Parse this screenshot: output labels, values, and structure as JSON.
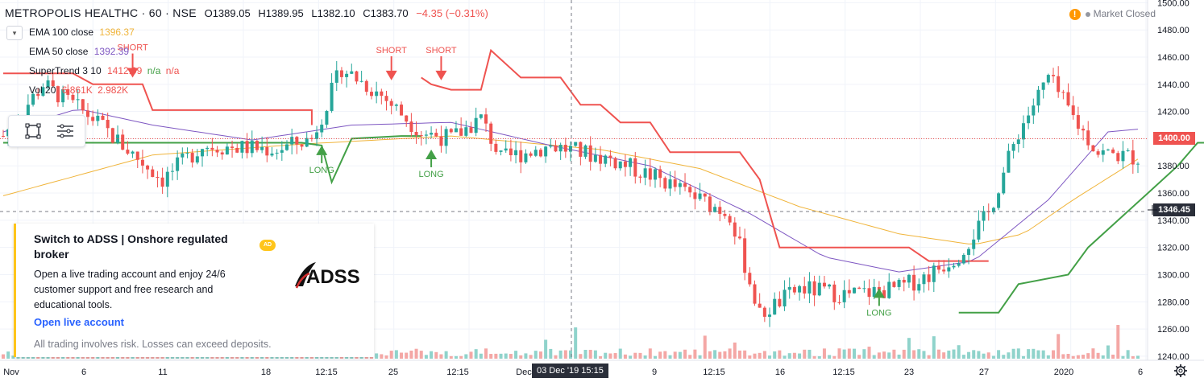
{
  "header": {
    "title": "METROPOLIS HEALTHC · 60 · NSE",
    "o_label": "O",
    "o": "1389.05",
    "h_label": "H",
    "h": "1389.95",
    "l_label": "L",
    "l": "1382.10",
    "c_label": "C",
    "c": "1383.70",
    "change": "−4.35 (−0.31%)"
  },
  "legend": {
    "ema100_label": "EMA 100 close",
    "ema100_value": "1396.37",
    "ema50_label": "EMA 50 close",
    "ema50_value": "1392.39",
    "supertrend_label": "SuperTrend 3 10",
    "supertrend_value": "1412.99",
    "supertrend_na1": "n/a",
    "supertrend_na2": "n/a",
    "vol_label": "Vol 20",
    "vol_value1": "6.861K",
    "vol_value2": "2.982K"
  },
  "market_status": {
    "warning_icon": "!",
    "label": "Market Closed"
  },
  "price_labels": {
    "last": "1400.00",
    "crosshair": "1346.45"
  },
  "crosshair_date": "03 Dec '19   15:15",
  "signals": {
    "short": "SHORT",
    "long": "LONG"
  },
  "ad": {
    "title": "Switch to ADSS | Onshore regulated broker",
    "badge": "AD",
    "body": "Open a live trading account and enjoy 24/6 customer support and free research and educational tools.",
    "link": "Open live account",
    "footer": "All trading involves risk. Losses can exceed deposits.",
    "logo_text": "ADSS"
  },
  "colors": {
    "up": "#26a69a",
    "down": "#ef5350",
    "ema100": "#f0b43a",
    "ema50": "#7e57c2",
    "st_up": "#43a047",
    "st_down": "#ef5350",
    "vol_up": "#8fd3cb",
    "vol_down": "#f4a7a5",
    "last_price": "#ef5350",
    "crosshair_label": "#2a2e39"
  },
  "chart_data": {
    "type": "candlestick",
    "symbol": "METROPOLIS HEALTHC",
    "interval": "60",
    "exchange": "NSE",
    "y_axis": {
      "ticks": [
        1500,
        1480,
        1460,
        1440,
        1420,
        1400,
        1380,
        1360,
        1340,
        1320,
        1300,
        1280,
        1260,
        1240
      ],
      "ylim": [
        1237,
        1502
      ],
      "side": "right"
    },
    "x_axis": {
      "ticks": [
        "Nov",
        "6",
        "11",
        "18",
        "12:15",
        "25",
        "12:15",
        "Dec",
        "9",
        "12:15",
        "16",
        "12:15",
        "23",
        "27",
        "2020",
        "6"
      ]
    },
    "candle_count": 210,
    "price_path": [
      {
        "bar": 0,
        "close": 1402
      },
      {
        "bar": 8,
        "close": 1440
      },
      {
        "bar": 18,
        "close": 1415
      },
      {
        "bar": 24,
        "close": 1395
      },
      {
        "bar": 32,
        "close": 1370
      },
      {
        "bar": 40,
        "close": 1395
      },
      {
        "bar": 55,
        "close": 1392
      },
      {
        "bar": 62,
        "close": 1400
      },
      {
        "bar": 68,
        "close": 1452
      },
      {
        "bar": 76,
        "close": 1432
      },
      {
        "bar": 84,
        "close": 1405
      },
      {
        "bar": 90,
        "close": 1400
      },
      {
        "bar": 96,
        "close": 1415
      },
      {
        "bar": 100,
        "close": 1385
      },
      {
        "bar": 110,
        "close": 1395
      },
      {
        "bar": 122,
        "close": 1385
      },
      {
        "bar": 132,
        "close": 1370
      },
      {
        "bar": 140,
        "close": 1355
      },
      {
        "bar": 146,
        "close": 1345
      },
      {
        "bar": 152,
        "close": 1270
      },
      {
        "bar": 160,
        "close": 1290
      },
      {
        "bar": 170,
        "close": 1285
      },
      {
        "bar": 180,
        "close": 1290
      },
      {
        "bar": 186,
        "close": 1300
      },
      {
        "bar": 192,
        "close": 1315
      },
      {
        "bar": 198,
        "close": 1345
      },
      {
        "bar": 204,
        "close": 1405
      },
      {
        "bar": 210,
        "close": 1445
      },
      {
        "bar": 216,
        "close": 1410
      },
      {
        "bar": 220,
        "close": 1390
      },
      {
        "bar": 228,
        "close": 1386
      }
    ],
    "ema100": [
      {
        "bar": 0,
        "value": 1358
      },
      {
        "bar": 30,
        "value": 1388
      },
      {
        "bar": 60,
        "value": 1396
      },
      {
        "bar": 90,
        "value": 1402
      },
      {
        "bar": 120,
        "value": 1392
      },
      {
        "bar": 140,
        "value": 1378
      },
      {
        "bar": 160,
        "value": 1350
      },
      {
        "bar": 180,
        "value": 1330
      },
      {
        "bar": 195,
        "value": 1322
      },
      {
        "bar": 205,
        "value": 1330
      },
      {
        "bar": 215,
        "value": 1355
      },
      {
        "bar": 228,
        "value": 1385
      }
    ],
    "ema50": [
      {
        "bar": 0,
        "value": 1405
      },
      {
        "bar": 15,
        "value": 1422
      },
      {
        "bar": 30,
        "value": 1410
      },
      {
        "bar": 50,
        "value": 1399
      },
      {
        "bar": 70,
        "value": 1410
      },
      {
        "bar": 90,
        "value": 1412
      },
      {
        "bar": 110,
        "value": 1395
      },
      {
        "bar": 130,
        "value": 1380
      },
      {
        "bar": 150,
        "value": 1345
      },
      {
        "bar": 165,
        "value": 1313
      },
      {
        "bar": 180,
        "value": 1302
      },
      {
        "bar": 195,
        "value": 1310
      },
      {
        "bar": 210,
        "value": 1355
      },
      {
        "bar": 222,
        "value": 1405
      },
      {
        "bar": 228,
        "value": 1407
      }
    ],
    "supertrend": [
      {
        "dir": "down",
        "points": [
          [
            0,
            1448
          ],
          [
            14,
            1448
          ],
          [
            18,
            1440
          ],
          [
            28,
            1440
          ],
          [
            30,
            1421
          ],
          [
            62,
            1421
          ],
          [
            62,
            1410
          ]
        ]
      },
      {
        "dir": "up",
        "points": [
          [
            0,
            1397
          ],
          [
            16,
            1397
          ],
          [
            30,
            1397
          ],
          [
            60,
            1397
          ],
          [
            64,
            1395
          ],
          [
            66,
            1368
          ],
          [
            70,
            1400
          ],
          [
            80,
            1402
          ],
          [
            84,
            1402
          ]
        ]
      },
      {
        "dir": "down",
        "points": [
          [
            84,
            1445
          ],
          [
            86,
            1440
          ],
          [
            90,
            1436
          ],
          [
            96,
            1436
          ],
          [
            98,
            1465
          ],
          [
            104,
            1445
          ],
          [
            112,
            1445
          ],
          [
            116,
            1425
          ],
          [
            120,
            1425
          ],
          [
            124,
            1412
          ],
          [
            130,
            1412
          ],
          [
            134,
            1390
          ],
          [
            148,
            1390
          ],
          [
            152,
            1370
          ],
          [
            156,
            1320
          ],
          [
            182,
            1320
          ],
          [
            186,
            1310
          ],
          [
            198,
            1310
          ]
        ]
      },
      {
        "dir": "up",
        "points": [
          [
            192,
            1272
          ],
          [
            200,
            1272
          ],
          [
            204,
            1293
          ],
          [
            214,
            1300
          ],
          [
            218,
            1320
          ],
          [
            224,
            1340
          ],
          [
            230,
            1360
          ],
          [
            236,
            1380
          ],
          [
            240,
            1397
          ],
          [
            250,
            1397
          ],
          [
            260,
            1397
          ]
        ]
      }
    ],
    "signals": [
      {
        "type": "SHORT",
        "bar": 26,
        "price": 1452
      },
      {
        "type": "LONG",
        "bar": 64,
        "price": 1395
      },
      {
        "type": "SHORT",
        "bar": 78,
        "price": 1450
      },
      {
        "type": "LONG",
        "bar": 86,
        "price": 1392
      },
      {
        "type": "SHORT",
        "bar": 88,
        "price": 1450
      },
      {
        "type": "LONG",
        "bar": 176,
        "price": 1290
      }
    ],
    "volume": {
      "series": "Vol 20",
      "values": [
        "6.861K",
        "2.982K"
      ]
    },
    "last_price": 1400.0,
    "crosshair_price": 1346.45,
    "crosshair_time": "03 Dec '19 15:15"
  }
}
